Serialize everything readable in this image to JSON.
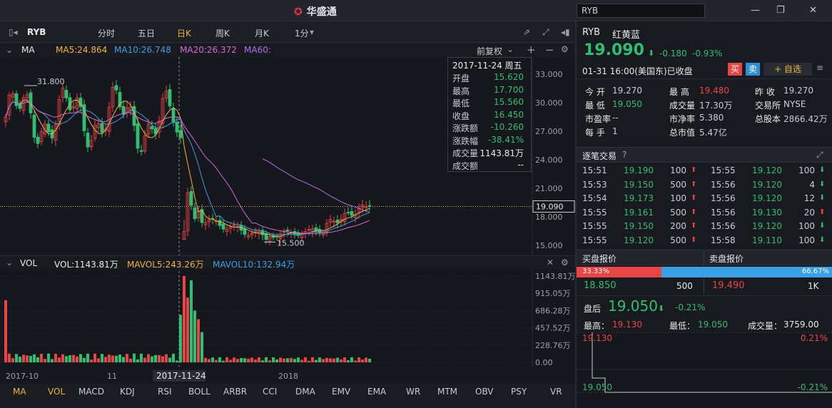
{
  "app": {
    "title": "华盛通",
    "search_value": "RYB"
  },
  "toolbar": {
    "symbol": "RYB",
    "periods": [
      "分时",
      "五日",
      "日K",
      "周K",
      "月K",
      "1分"
    ],
    "active": "日K"
  },
  "ma_bar": {
    "label": "MA",
    "ma5": "MA5:24.864",
    "ma10": "MA10:26.748",
    "ma20": "MA20:26.372",
    "ma60": "MA60:",
    "adjust": "前复权"
  },
  "price_axis": [
    "33.000",
    "30.000",
    "27.000",
    "24.000",
    "21.000",
    "18.000",
    "15.000"
  ],
  "chart_labels": {
    "high": "31.800",
    "low": "15.500",
    "current": "19.090"
  },
  "tooltip": {
    "date": "2017-11-24 周五",
    "rows": [
      {
        "k": "开盘",
        "v": "15.620",
        "c": "green"
      },
      {
        "k": "最高",
        "v": "17.700",
        "c": "green"
      },
      {
        "k": "最低",
        "v": "15.560",
        "c": "green"
      },
      {
        "k": "收盘",
        "v": "16.450",
        "c": "green"
      },
      {
        "k": "涨跌额",
        "v": "-10.260",
        "c": "green"
      },
      {
        "k": "涨跌幅",
        "v": "-38.41%",
        "c": "green"
      },
      {
        "k": "成交量",
        "v": "1143.81万",
        "c": "white"
      },
      {
        "k": "成交额",
        "v": "--",
        "c": "white"
      }
    ]
  },
  "vol_bar": {
    "label": "VOL",
    "vol": "VOL:1143.81万",
    "mavol5": "MAVOL5:243.26万",
    "mavol10": "MAVOL10:132.94万"
  },
  "vol_axis": [
    "1143.81万",
    "915.05万",
    "686.28万",
    "457.52万",
    "228.76万",
    "0.00"
  ],
  "x_axis": {
    "a": "2017-10",
    "b": "11",
    "c": "2017-11-24",
    "d": "2018"
  },
  "indicators": [
    "MA",
    "VOL",
    "MACD",
    "KDJ",
    "RSI",
    "BOLL",
    "ARBR",
    "CCI",
    "DMA",
    "EMV",
    "EMA",
    "WR",
    "MTM",
    "OBV",
    "PSY",
    "VR"
  ],
  "quote": {
    "symbol": "RYB",
    "name": "红黄蓝",
    "price": "19.090",
    "change": "-0.180",
    "pct": "-0.93%",
    "time": "01-31 16:00(美国东)已收盘",
    "buy": "买",
    "sell": "卖",
    "watch": "+ 自选",
    "stats": [
      [
        "今  开",
        "19.270",
        "最  高",
        "19.480",
        "昨  收",
        "19.270"
      ],
      [
        "最  低",
        "19.050",
        "成交量",
        "17.30万",
        "交易所",
        "NYSE"
      ],
      [
        "市盈率",
        "--",
        "市净率",
        "5.380",
        "总股本",
        "2866.42万"
      ],
      [
        "每  手",
        "1",
        "总市值",
        "5.47亿",
        "",
        ""
      ]
    ]
  },
  "trades": {
    "title": "逐笔交易",
    "left": [
      [
        "15:51",
        "19.190",
        "100",
        "up"
      ],
      [
        "15:53",
        "19.150",
        "500",
        "up"
      ],
      [
        "15:54",
        "19.173",
        "100",
        "up"
      ],
      [
        "15:55",
        "19.161",
        "500",
        "up"
      ],
      [
        "15:55",
        "19.150",
        "200",
        "up"
      ],
      [
        "15:55",
        "19.120",
        "500",
        "up"
      ]
    ],
    "right": [
      [
        "15:55",
        "19.120",
        "100",
        "down"
      ],
      [
        "15:56",
        "19.120",
        "4",
        "down"
      ],
      [
        "15:56",
        "19.120",
        "12",
        "down"
      ],
      [
        "15:56",
        "19.130",
        "20",
        "up"
      ],
      [
        "15:56",
        "19.120",
        "100",
        "down"
      ],
      [
        "15:58",
        "19.110",
        "100",
        "down"
      ]
    ]
  },
  "orderbook": {
    "bid_title": "买盘报价",
    "ask_title": "卖盘报价",
    "bid_pct": "33.33%",
    "ask_pct": "66.67%",
    "bid_fraction": 0.3333,
    "bid_price": "18.850",
    "bid_qty": "500",
    "ask_price": "19.490",
    "ask_qty": "1K"
  },
  "afterhours": {
    "label": "盘后",
    "price": "19.050",
    "pct": "-0.21%",
    "high_label": "最高：",
    "high": "19.130",
    "low_label": "最低：",
    "low": "19.050",
    "vol_label": "成交量：",
    "vol": "3759.00",
    "chart": {
      "top_price": "19.130",
      "top_pct": "0.21%",
      "bottom_price": "19.050",
      "bottom_pct": "-0.21%"
    }
  },
  "colors": {
    "up": "#e84545",
    "down": "#2fbf71",
    "ma5": "#f0b43c",
    "ma10": "#3aa0e6",
    "ma20": "#d56ad6"
  }
}
